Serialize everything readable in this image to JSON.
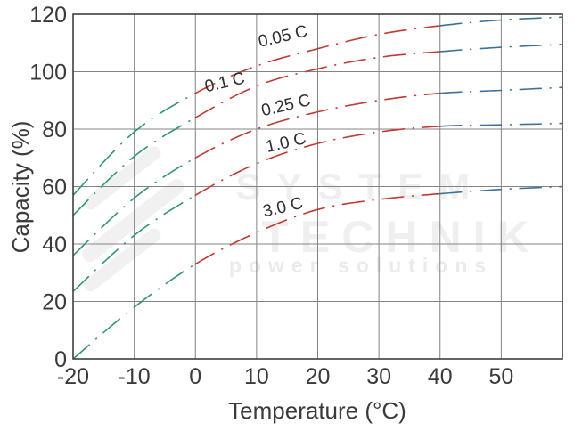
{
  "watermark": {
    "line1": "SYSTEM",
    "line2": "TECHNIK",
    "line3": "power solutions"
  },
  "chart_data": {
    "type": "line",
    "title": "",
    "xlabel": "Temperature (°C)",
    "ylabel": "Capacity (%)",
    "xlim": [
      -20,
      60
    ],
    "ylim": [
      0,
      120
    ],
    "x_ticks": [
      -20,
      -10,
      0,
      10,
      20,
      30,
      40,
      50
    ],
    "y_ticks": [
      0,
      20,
      40,
      60,
      80,
      100,
      120
    ],
    "grid": true,
    "legend_position": "none",
    "line_style": "dash-dot",
    "x": [
      -20,
      -10,
      0,
      10,
      20,
      30,
      40,
      50,
      60
    ],
    "series": [
      {
        "name": "0.05 C",
        "values": [
          57,
          79,
          92.5,
          102,
          108,
          113,
          116,
          118,
          119
        ],
        "label": {
          "x": 14.5,
          "y": 110.5,
          "angle": -13
        }
      },
      {
        "name": "0.1 C",
        "values": [
          50,
          70.5,
          84,
          95,
          101,
          105,
          107,
          108.5,
          109.5
        ],
        "label": {
          "x": 5,
          "y": 94.5,
          "angle": -13
        }
      },
      {
        "name": "0.25 C",
        "values": [
          36,
          56,
          70,
          80,
          86,
          90,
          92.5,
          93.5,
          94.5
        ],
        "label": {
          "x": 15,
          "y": 86.5,
          "angle": -13
        }
      },
      {
        "name": "1.0 C",
        "values": [
          23.5,
          43,
          57,
          68,
          75,
          79,
          81,
          81.5,
          82
        ],
        "label": {
          "x": 15,
          "y": 73.5,
          "angle": -13
        }
      },
      {
        "name": "3.0 C",
        "values": [
          0,
          18,
          33,
          44,
          52,
          55.5,
          57.5,
          59,
          60
        ],
        "label": {
          "x": 14.5,
          "y": 51,
          "angle": -13
        }
      }
    ],
    "color_segments": [
      {
        "from": -20,
        "to": 0,
        "color": "#2e9577"
      },
      {
        "from": 0,
        "to": 40,
        "color": "#c13a33"
      },
      {
        "from": 40,
        "to": 60,
        "color": "#3b7295"
      }
    ],
    "grid_color": "#848484",
    "axis_text_color": "#3a3a3a"
  }
}
